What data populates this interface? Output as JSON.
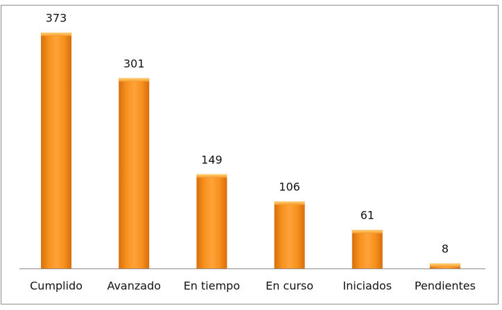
{
  "chart_data": {
    "type": "bar",
    "categories": [
      "Cumplido",
      "Avanzado",
      "En tiempo",
      "En curso",
      "Iniciados",
      "Pendientes"
    ],
    "values": [
      373,
      301,
      149,
      106,
      61,
      8
    ],
    "color": "#f7911e"
  }
}
